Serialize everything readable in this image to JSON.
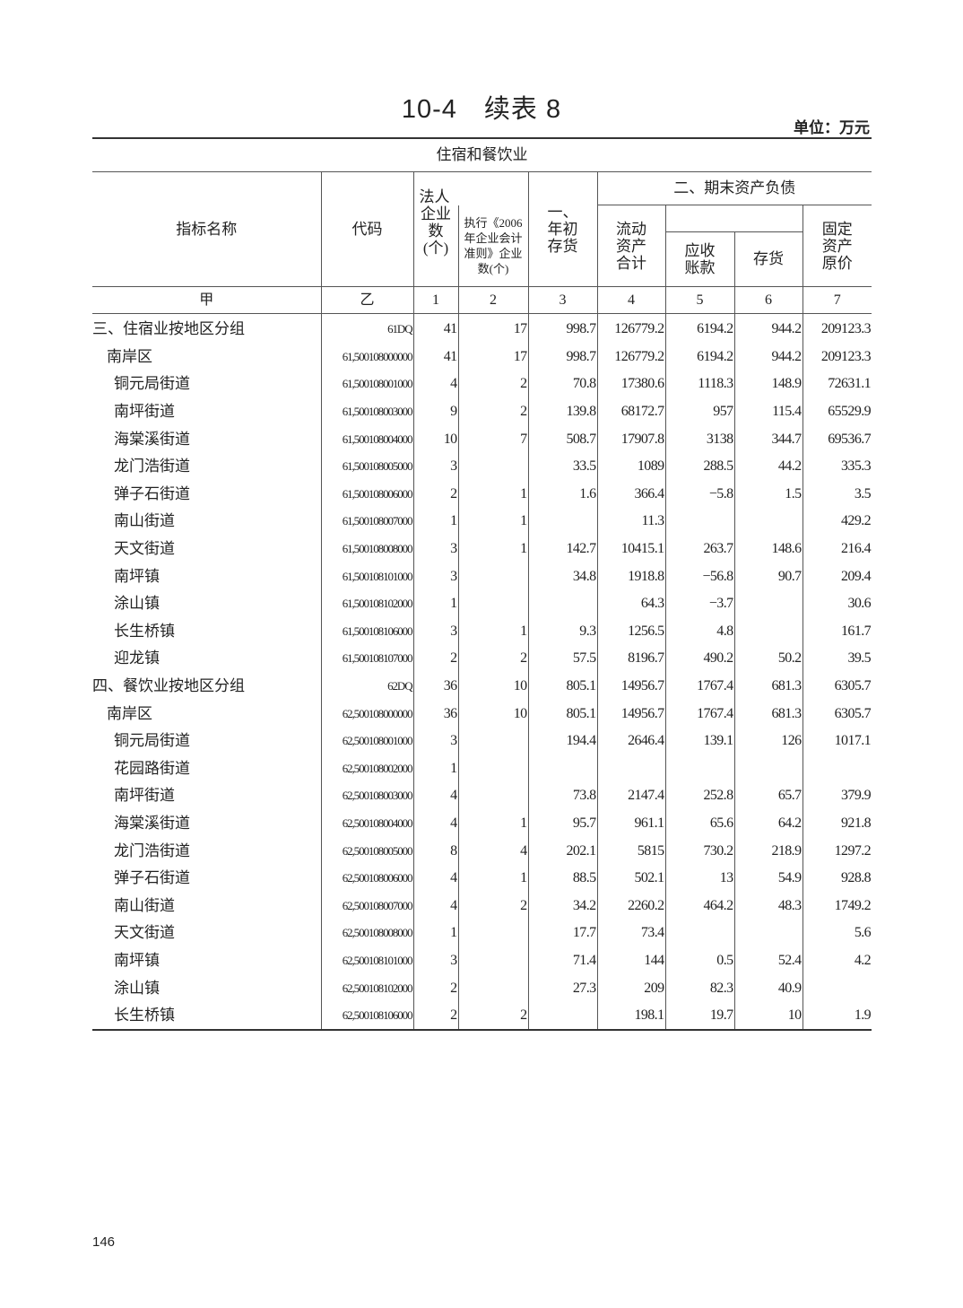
{
  "title": "10-4　续表 8",
  "unit": "单位：万元",
  "page_number": "146",
  "section_header": "住宿和餐饮业",
  "headers": {
    "name": "指标名称",
    "code": "代码",
    "c1_top": "法人",
    "c1_rest": "企业\n数\n(个)",
    "c2": "执行《2006\n年企业会计\n准则》企业\n数(个)",
    "c3": "一、\n年初\n存货",
    "group2": "二、期末资产负债",
    "c4": "流动\n资产\n合计",
    "c5": "应收\n账款",
    "c6": "存货",
    "c7": "固定\n资产\n原价"
  },
  "column_numbers": [
    "甲",
    "乙",
    "1",
    "2",
    "3",
    "4",
    "5",
    "6",
    "7"
  ],
  "rows": [
    {
      "name": "三、住宿业按地区分组",
      "level": 0,
      "code": "61DQ",
      "v": [
        "41",
        "17",
        "998.7",
        "126779.2",
        "6194.2",
        "944.2",
        "209123.3"
      ]
    },
    {
      "name": "南岸区",
      "level": 1,
      "code": "61,500108000000",
      "v": [
        "41",
        "17",
        "998.7",
        "126779.2",
        "6194.2",
        "944.2",
        "209123.3"
      ]
    },
    {
      "name": "铜元局街道",
      "level": 2,
      "code": "61,500108001000",
      "v": [
        "4",
        "2",
        "70.8",
        "17380.6",
        "1118.3",
        "148.9",
        "72631.1"
      ]
    },
    {
      "name": "南坪街道",
      "level": 2,
      "code": "61,500108003000",
      "v": [
        "9",
        "2",
        "139.8",
        "68172.7",
        "957",
        "115.4",
        "65529.9"
      ]
    },
    {
      "name": "海棠溪街道",
      "level": 2,
      "code": "61,500108004000",
      "v": [
        "10",
        "7",
        "508.7",
        "17907.8",
        "3138",
        "344.7",
        "69536.7"
      ]
    },
    {
      "name": "龙门浩街道",
      "level": 2,
      "code": "61,500108005000",
      "v": [
        "3",
        "",
        "33.5",
        "1089",
        "288.5",
        "44.2",
        "335.3"
      ]
    },
    {
      "name": "弹子石街道",
      "level": 2,
      "code": "61,500108006000",
      "v": [
        "2",
        "1",
        "1.6",
        "366.4",
        "−5.8",
        "1.5",
        "3.5"
      ]
    },
    {
      "name": "南山街道",
      "level": 2,
      "code": "61,500108007000",
      "v": [
        "1",
        "1",
        "",
        "11.3",
        "",
        "",
        "429.2"
      ]
    },
    {
      "name": "天文街道",
      "level": 2,
      "code": "61,500108008000",
      "v": [
        "3",
        "1",
        "142.7",
        "10415.1",
        "263.7",
        "148.6",
        "216.4"
      ]
    },
    {
      "name": "南坪镇",
      "level": 2,
      "code": "61,500108101000",
      "v": [
        "3",
        "",
        "34.8",
        "1918.8",
        "−56.8",
        "90.7",
        "209.4"
      ]
    },
    {
      "name": "涂山镇",
      "level": 2,
      "code": "61,500108102000",
      "v": [
        "1",
        "",
        "",
        "64.3",
        "−3.7",
        "",
        "30.6"
      ]
    },
    {
      "name": "长生桥镇",
      "level": 2,
      "code": "61,500108106000",
      "v": [
        "3",
        "1",
        "9.3",
        "1256.5",
        "4.8",
        "",
        "161.7"
      ]
    },
    {
      "name": "迎龙镇",
      "level": 2,
      "code": "61,500108107000",
      "v": [
        "2",
        "2",
        "57.5",
        "8196.7",
        "490.2",
        "50.2",
        "39.5"
      ]
    },
    {
      "name": "四、餐饮业按地区分组",
      "level": 0,
      "code": "62DQ",
      "v": [
        "36",
        "10",
        "805.1",
        "14956.7",
        "1767.4",
        "681.3",
        "6305.7"
      ]
    },
    {
      "name": "南岸区",
      "level": 1,
      "code": "62,500108000000",
      "v": [
        "36",
        "10",
        "805.1",
        "14956.7",
        "1767.4",
        "681.3",
        "6305.7"
      ]
    },
    {
      "name": "铜元局街道",
      "level": 2,
      "code": "62,500108001000",
      "v": [
        "3",
        "",
        "194.4",
        "2646.4",
        "139.1",
        "126",
        "1017.1"
      ]
    },
    {
      "name": "花园路街道",
      "level": 2,
      "code": "62,500108002000",
      "v": [
        "1",
        "",
        "",
        "",
        "",
        "",
        ""
      ]
    },
    {
      "name": "南坪街道",
      "level": 2,
      "code": "62,500108003000",
      "v": [
        "4",
        "",
        "73.8",
        "2147.4",
        "252.8",
        "65.7",
        "379.9"
      ]
    },
    {
      "name": "海棠溪街道",
      "level": 2,
      "code": "62,500108004000",
      "v": [
        "4",
        "1",
        "95.7",
        "961.1",
        "65.6",
        "64.2",
        "921.8"
      ]
    },
    {
      "name": "龙门浩街道",
      "level": 2,
      "code": "62,500108005000",
      "v": [
        "8",
        "4",
        "202.1",
        "5815",
        "730.2",
        "218.9",
        "1297.2"
      ]
    },
    {
      "name": "弹子石街道",
      "level": 2,
      "code": "62,500108006000",
      "v": [
        "4",
        "1",
        "88.5",
        "502.1",
        "13",
        "54.9",
        "928.8"
      ]
    },
    {
      "name": "南山街道",
      "level": 2,
      "code": "62,500108007000",
      "v": [
        "4",
        "2",
        "34.2",
        "2260.2",
        "464.2",
        "48.3",
        "1749.2"
      ]
    },
    {
      "name": "天文街道",
      "level": 2,
      "code": "62,500108008000",
      "v": [
        "1",
        "",
        "17.7",
        "73.4",
        "",
        "",
        "5.6"
      ]
    },
    {
      "name": "南坪镇",
      "level": 2,
      "code": "62,500108101000",
      "v": [
        "3",
        "",
        "71.4",
        "144",
        "0.5",
        "52.4",
        "4.2"
      ]
    },
    {
      "name": "涂山镇",
      "level": 2,
      "code": "62,500108102000",
      "v": [
        "2",
        "",
        "27.3",
        "209",
        "82.3",
        "40.9",
        ""
      ]
    },
    {
      "name": "长生桥镇",
      "level": 2,
      "code": "62,500108106000",
      "v": [
        "2",
        "2",
        "",
        "198.1",
        "19.7",
        "10",
        "1.9"
      ]
    }
  ]
}
